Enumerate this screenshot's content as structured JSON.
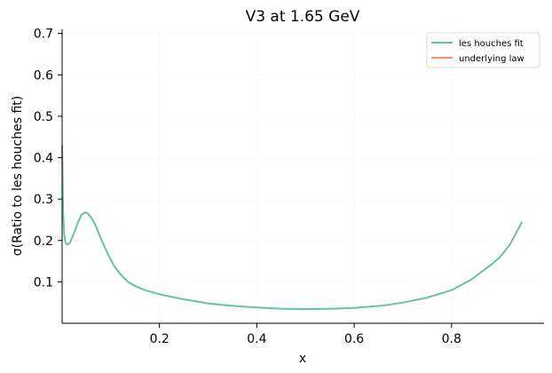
{
  "chart_data": {
    "type": "line",
    "title": "V3 at 1.65 GeV",
    "xlabel": "x",
    "ylabel": "σ(Ratio to les houches fit)",
    "xlim": [
      0.0,
      0.99
    ],
    "ylim": [
      0.0,
      0.71
    ],
    "xticks": [
      0.2,
      0.4,
      0.6,
      0.8
    ],
    "xtick_labels": [
      "0.2",
      "0.4",
      "0.6",
      "0.8"
    ],
    "yticks": [
      0.1,
      0.2,
      0.3,
      0.4,
      0.5,
      0.6,
      0.7
    ],
    "ytick_labels": [
      "0.1",
      "0.2",
      "0.3",
      "0.4",
      "0.5",
      "0.6",
      "0.7"
    ],
    "grid": true,
    "legend_position": "top-right",
    "series": [
      {
        "name": "les houches fit",
        "color": "#66c2a5",
        "x": [
          0.0,
          0.002,
          0.004,
          0.006,
          0.008,
          0.012,
          0.016,
          0.02,
          0.026,
          0.033,
          0.04,
          0.047,
          0.053,
          0.06,
          0.068,
          0.076,
          0.085,
          0.095,
          0.106,
          0.12,
          0.135,
          0.15,
          0.17,
          0.2,
          0.25,
          0.3,
          0.35,
          0.4,
          0.45,
          0.5,
          0.55,
          0.6,
          0.63,
          0.66,
          0.7,
          0.75,
          0.8,
          0.84,
          0.88,
          0.9,
          0.92,
          0.945
        ],
        "y": [
          0.43,
          0.27,
          0.22,
          0.2,
          0.192,
          0.19,
          0.195,
          0.205,
          0.222,
          0.245,
          0.262,
          0.268,
          0.265,
          0.255,
          0.238,
          0.215,
          0.19,
          0.165,
          0.14,
          0.118,
          0.1,
          0.09,
          0.08,
          0.07,
          0.058,
          0.048,
          0.042,
          0.038,
          0.035,
          0.034,
          0.035,
          0.037,
          0.04,
          0.043,
          0.05,
          0.062,
          0.08,
          0.105,
          0.14,
          0.16,
          0.19,
          0.245
        ]
      },
      {
        "name": "underlying law",
        "color": "#fc8d62",
        "x": [],
        "y": []
      }
    ]
  }
}
